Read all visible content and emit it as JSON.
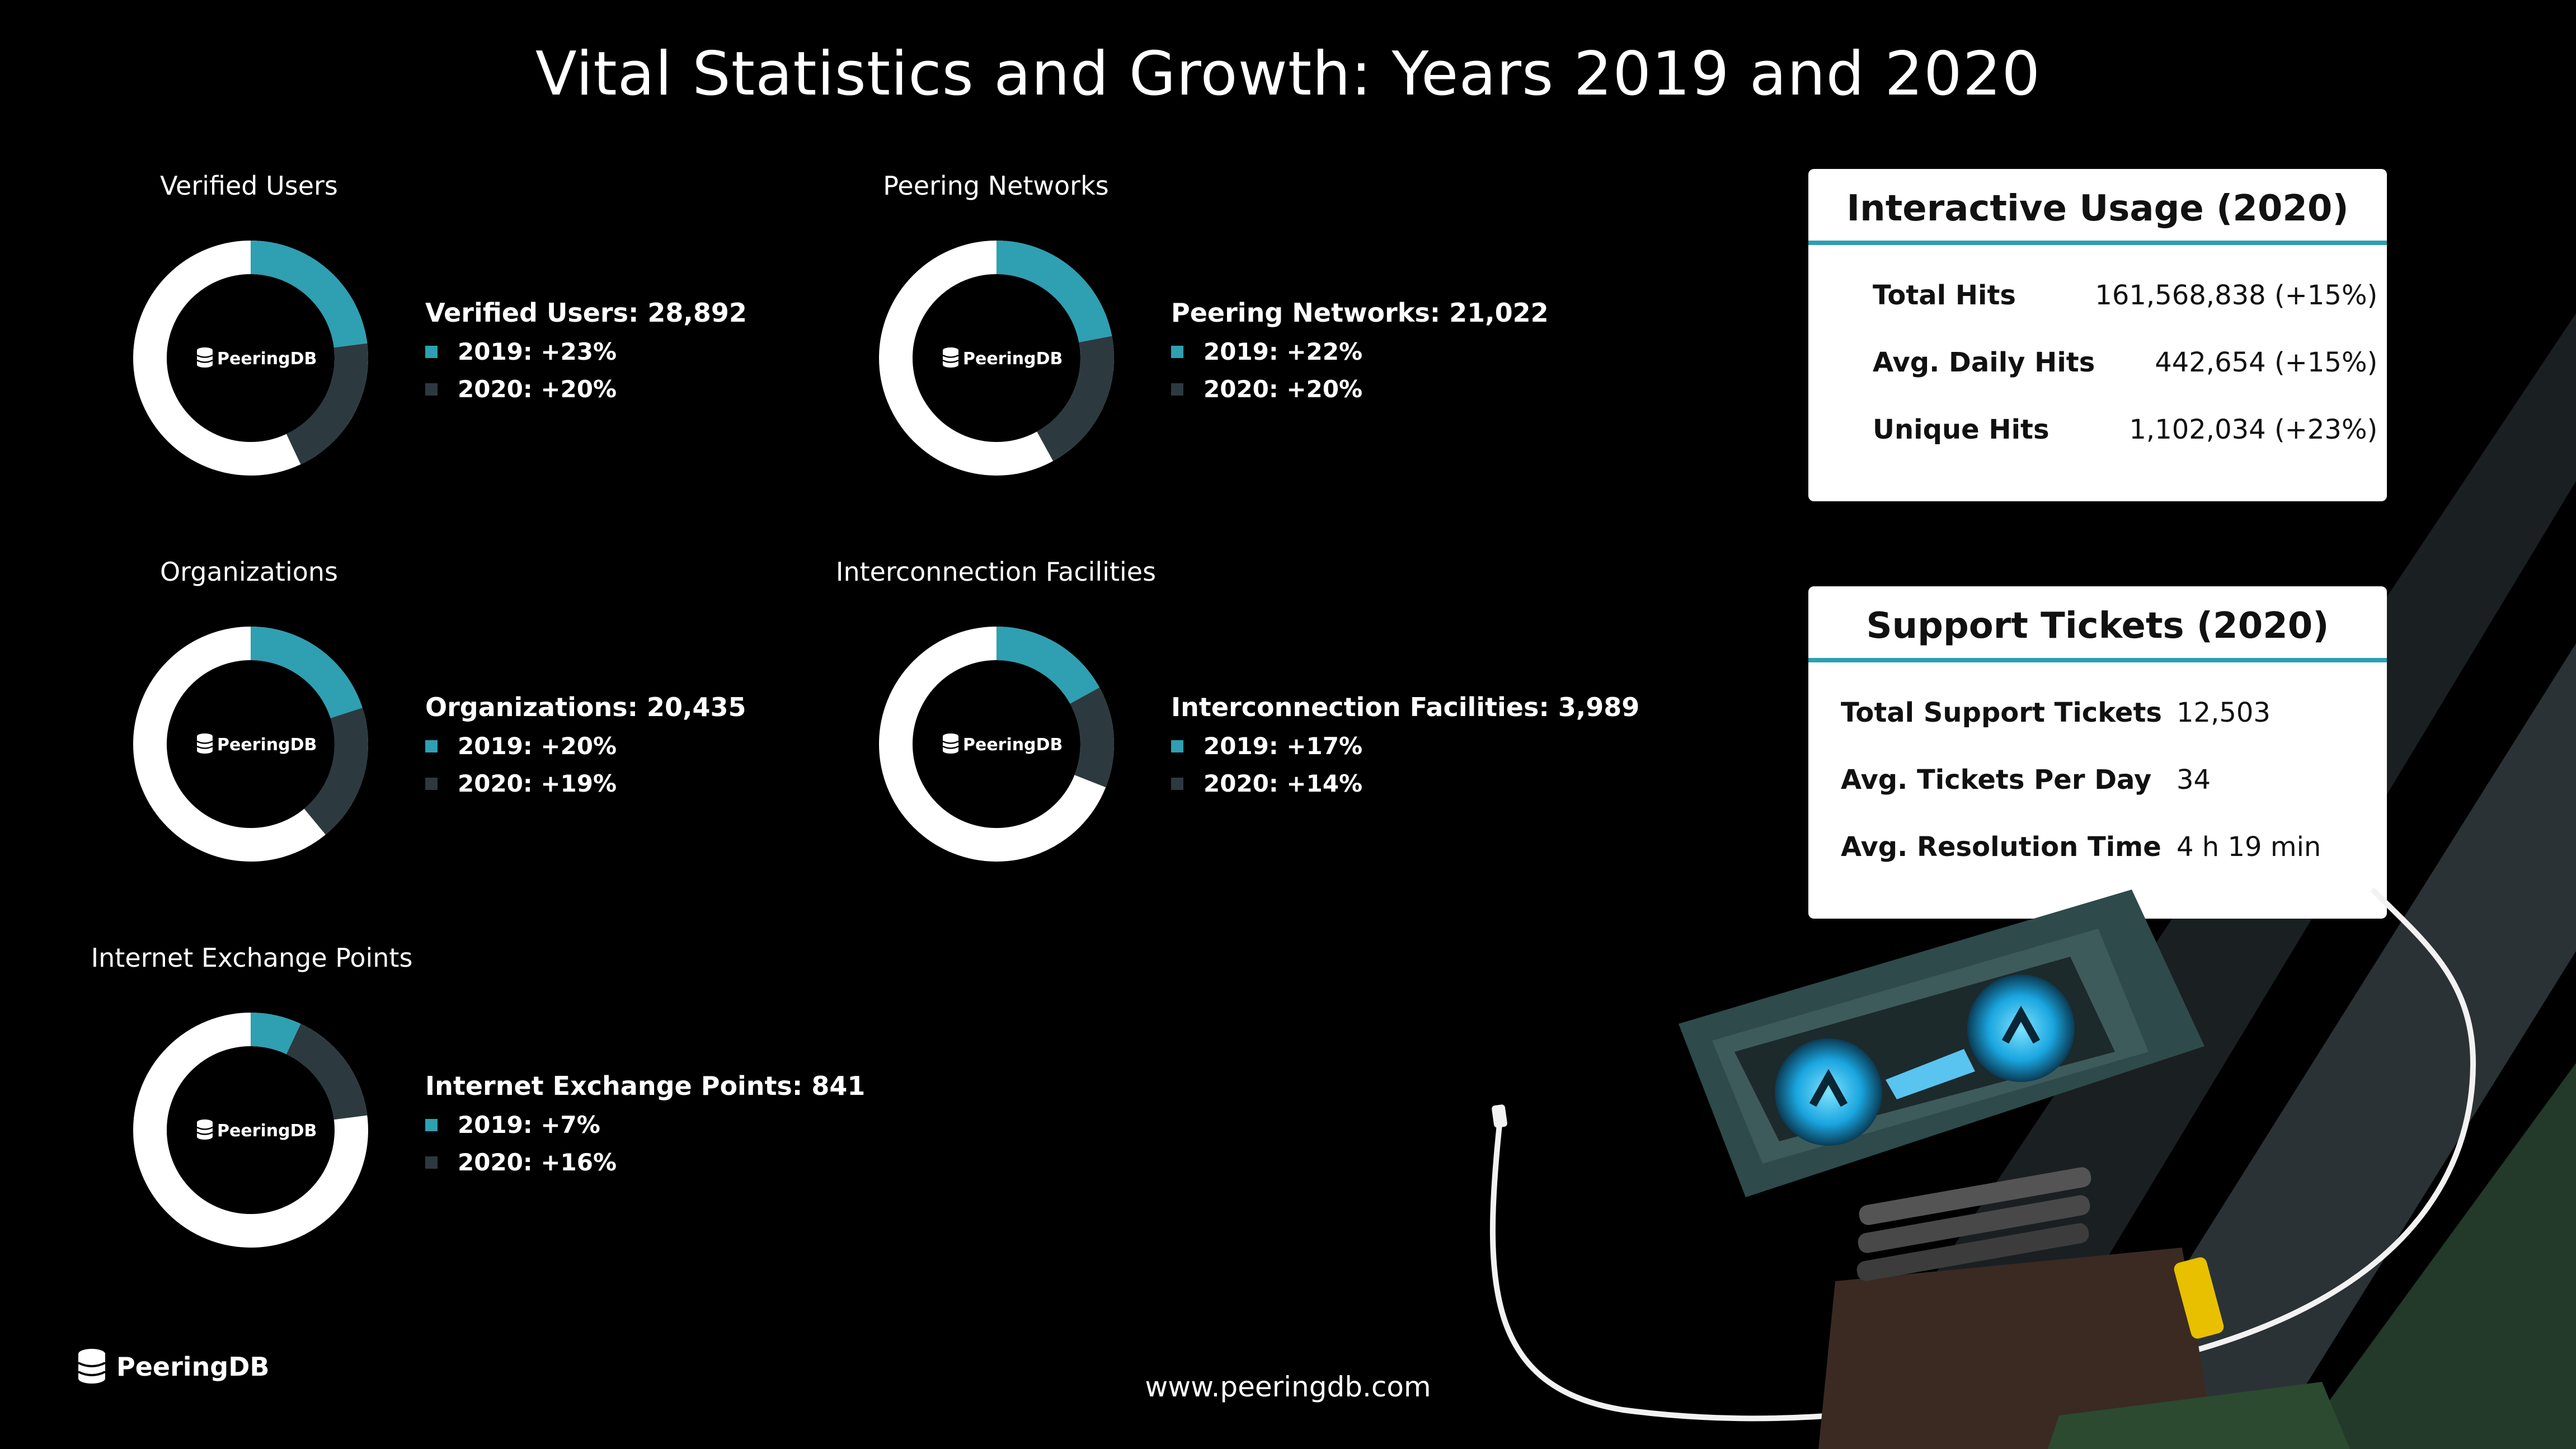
{
  "title": "Vital Statistics and Growth: Years 2019 and 2020",
  "colors": {
    "accent_2019": "#2f9fb2",
    "dark_2020": "#2c3a40",
    "ring_base": "#ffffff",
    "background": "#000000"
  },
  "brand": {
    "name": "PeeringDB",
    "logo_icon": "database-stack-icon"
  },
  "chart_data": [
    {
      "type": "pie",
      "title": "Verified Users",
      "heading": "Verified Users: 28,892",
      "series": [
        {
          "name": "2019: +23%",
          "value": 23
        },
        {
          "name": "2020: +20%",
          "value": 20
        }
      ]
    },
    {
      "type": "pie",
      "title": "Peering Networks",
      "heading": "Peering Networks: 21,022",
      "series": [
        {
          "name": "2019: +22%",
          "value": 22
        },
        {
          "name": "2020: +20%",
          "value": 20
        }
      ]
    },
    {
      "type": "pie",
      "title": "Organizations",
      "heading": "Organizations: 20,435",
      "series": [
        {
          "name": "2019: +20%",
          "value": 20
        },
        {
          "name": "2020: +19%",
          "value": 19
        }
      ]
    },
    {
      "type": "pie",
      "title": "Interconnection Facilities",
      "heading": "Interconnection Facilities: 3,989",
      "series": [
        {
          "name": "2019: +17%",
          "value": 17
        },
        {
          "name": "2020: +14%",
          "value": 14
        }
      ]
    },
    {
      "type": "pie",
      "title": "Internet Exchange Points",
      "heading": "Internet Exchange Points: 841",
      "series": [
        {
          "name": "2019: +7%",
          "value": 7
        },
        {
          "name": "2020: +16%",
          "value": 16
        }
      ]
    }
  ],
  "usage_card": {
    "title": "Interactive Usage  (2020)",
    "rows": [
      {
        "label": "Total Hits",
        "value": "161,568,838 (+15%)"
      },
      {
        "label": "Avg. Daily Hits",
        "value": "442,654 (+15%)"
      },
      {
        "label": "Unique Hits",
        "value": "1,102,034 (+23%)"
      }
    ]
  },
  "support_card": {
    "title": "Support Tickets (2020)",
    "rows": [
      {
        "label": "Total Support Tickets",
        "value": "12,503"
      },
      {
        "label": "Avg. Tickets Per Day",
        "value": "34"
      },
      {
        "label": "Avg. Resolution Time",
        "value": "4 h 19 min"
      }
    ]
  },
  "footer": {
    "url": "www.peeringdb.com"
  }
}
